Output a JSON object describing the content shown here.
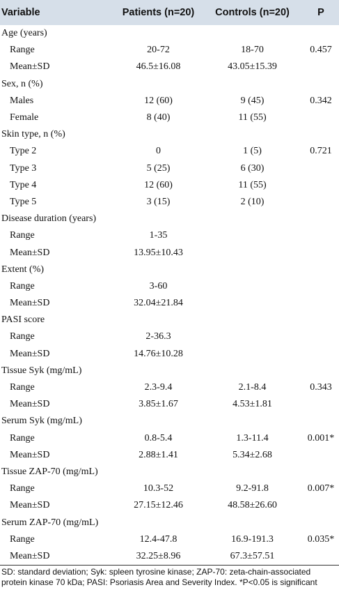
{
  "table": {
    "columns": [
      "Variable",
      "Patients (n=20)",
      "Controls (n=20)",
      "P"
    ],
    "groups": [
      {
        "label": "Age (years)",
        "rows": [
          {
            "label": "Range",
            "cells": [
              "20-72",
              "18-70",
              "0.457"
            ]
          },
          {
            "label": "Mean±SD",
            "cells": [
              "46.5±16.08",
              "43.05±15.39",
              null
            ]
          }
        ]
      },
      {
        "label": "Sex, n (%)",
        "rows": [
          {
            "label": "Males",
            "cells": [
              "12 (60)",
              "9 (45)",
              "0.342"
            ]
          },
          {
            "label": "Female",
            "cells": [
              "8 (40)",
              "11 (55)",
              null
            ]
          }
        ]
      },
      {
        "label": "Skin type, n (%)",
        "rows": [
          {
            "label": "Type 2",
            "cells": [
              "0",
              "1 (5)",
              "0.721"
            ]
          },
          {
            "label": "Type 3",
            "cells": [
              "5 (25)",
              "6 (30)",
              null
            ]
          },
          {
            "label": "Type 4",
            "cells": [
              "12 (60)",
              "11 (55)",
              null
            ]
          },
          {
            "label": "Type 5",
            "cells": [
              "3 (15)",
              "2 (10)",
              null
            ]
          }
        ]
      },
      {
        "label": "Disease duration (years)",
        "rows": [
          {
            "label": "Range",
            "cells": [
              "1-35",
              null,
              null
            ]
          },
          {
            "label": "Mean±SD",
            "cells": [
              "13.95±10.43",
              null,
              null
            ]
          }
        ]
      },
      {
        "label": "Extent (%)",
        "rows": [
          {
            "label": "Range",
            "cells": [
              "3-60",
              null,
              null
            ]
          },
          {
            "label": "Mean±SD",
            "cells": [
              "32.04±21.84",
              null,
              null
            ]
          }
        ]
      },
      {
        "label": "PASI score",
        "rows": [
          {
            "label": "Range",
            "cells": [
              "2-36.3",
              null,
              null
            ]
          },
          {
            "label": "Mean±SD",
            "cells": [
              "14.76±10.28",
              null,
              null
            ]
          }
        ]
      },
      {
        "label": "Tissue Syk (mg/mL)",
        "rows": [
          {
            "label": "Range",
            "cells": [
              "2.3-9.4",
              "2.1-8.4",
              "0.343"
            ]
          },
          {
            "label": "Mean±SD",
            "cells": [
              "3.85±1.67",
              "4.53±1.81",
              null
            ]
          }
        ]
      },
      {
        "label": "Serum Syk (mg/mL)",
        "rows": [
          {
            "label": "Range",
            "cells": [
              "0.8-5.4",
              "1.3-11.4",
              "0.001*"
            ]
          },
          {
            "label": "Mean±SD",
            "cells": [
              "2.88±1.41",
              "5.34±2.68",
              null
            ]
          }
        ]
      },
      {
        "label": "Tissue ZAP-70 (mg/mL)",
        "rows": [
          {
            "label": "Range",
            "cells": [
              "10.3-52",
              "9.2-91.8",
              "0.007*"
            ]
          },
          {
            "label": "Mean±SD",
            "cells": [
              "27.15±12.46",
              "48.58±26.60",
              null
            ]
          }
        ]
      },
      {
        "label": "Serum ZAP-70 (mg/mL)",
        "rows": [
          {
            "label": "Range",
            "cells": [
              "12.4-47.8",
              "16.9-191.3",
              "0.035*"
            ]
          },
          {
            "label": "Mean±SD",
            "cells": [
              "32.25±8.96",
              "67.3±57.51",
              null
            ]
          }
        ]
      }
    ],
    "footnote": "SD: standard deviation; Syk: spleen tyrosine kinase; ZAP-70: zeta-chain-associated protein kinase 70 kDa; PASI: Psoriasis Area and Severity Index. *P<0.05 is significant"
  }
}
